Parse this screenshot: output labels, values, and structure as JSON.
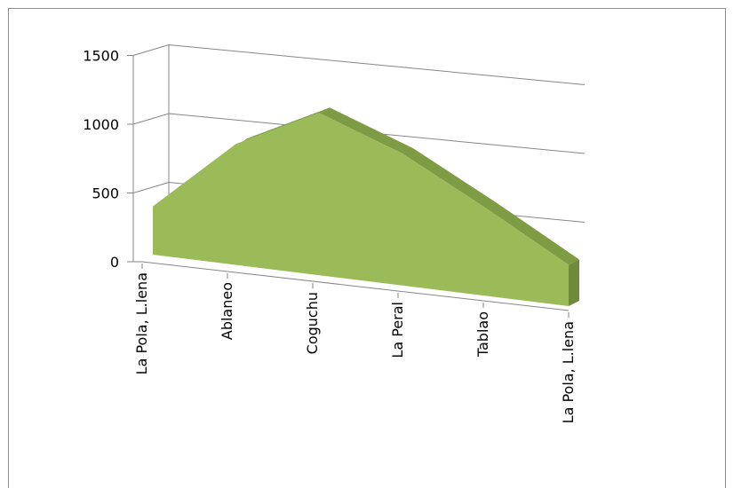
{
  "chart_data": {
    "type": "area",
    "view": "3d",
    "title": "",
    "xlabel": "",
    "ylabel": "",
    "categories": [
      "La Pola, L.lena",
      "Ablaneo",
      "Coguchu",
      "La Peral",
      "Tablao",
      "La Pola, L.lena"
    ],
    "series": [
      {
        "values": [
          350,
          880,
          1180,
          960,
          640,
          300
        ]
      }
    ],
    "ylim": [
      0,
      1500
    ],
    "yticks": [
      0,
      500,
      1000,
      1500
    ],
    "grid": true,
    "legend": "none",
    "colors": {
      "area_front": "#9bbb59",
      "area_top": "#7e9c43",
      "area_side": "#6e8a3a",
      "axis": "#868686",
      "gridline": "#868686",
      "frame": "#8c8c8c"
    }
  }
}
